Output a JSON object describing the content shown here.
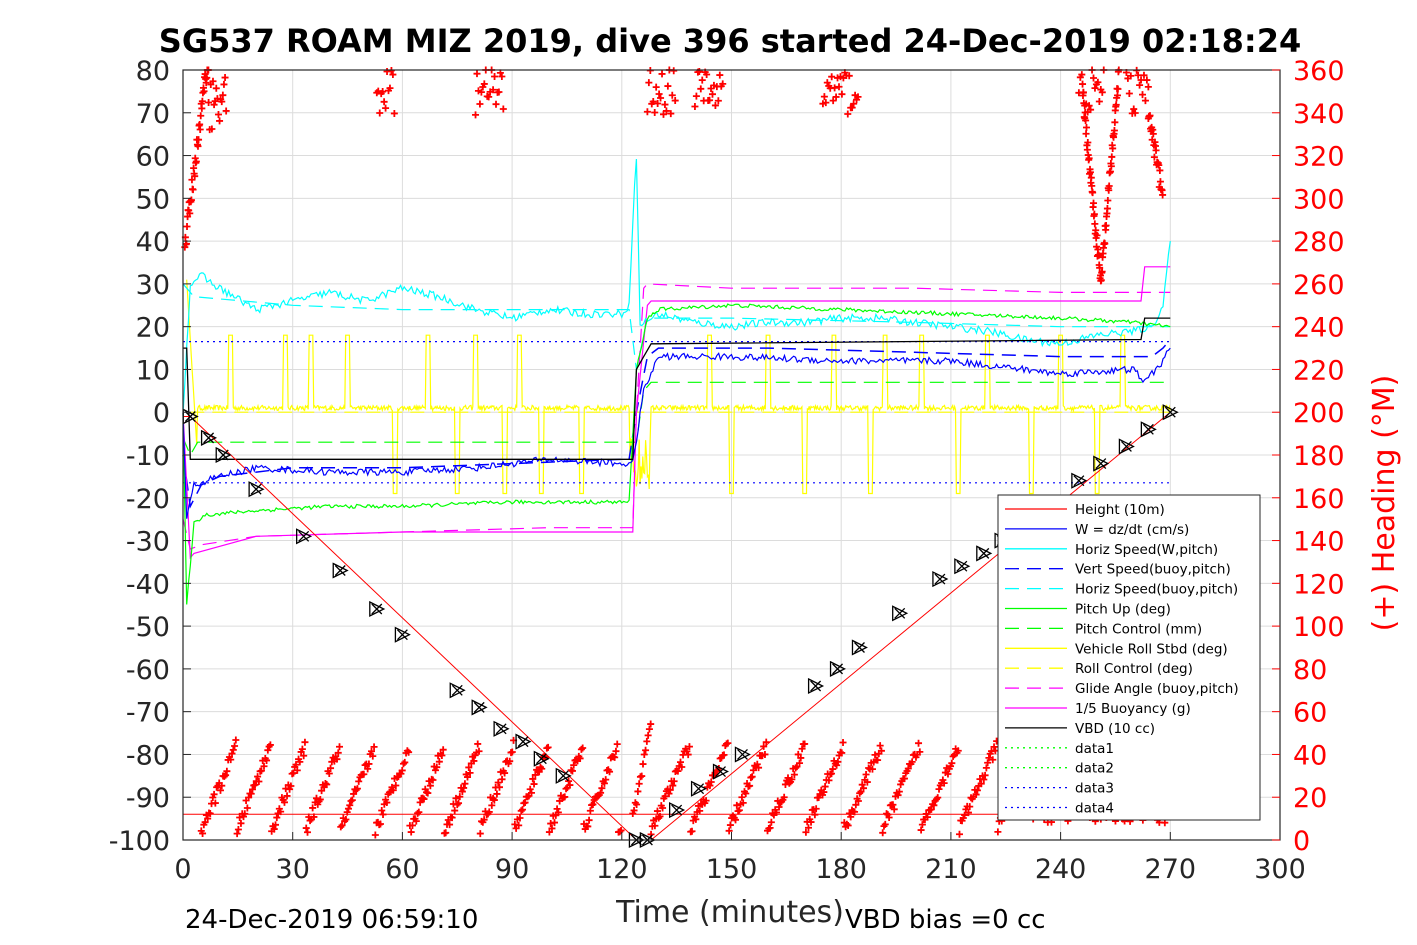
{
  "chart_data": {
    "type": "line",
    "title": "SG537 ROAM MIZ 2019, dive 396 started 24-Dec-2019 02:18:24",
    "xlabel": "Time (minutes)",
    "ylabel_right": "(+) Heading (°M)",
    "footer_left": "24-Dec-2019 06:59:10",
    "footer_right": "VBD bias =0 cc",
    "xlim": [
      0,
      300
    ],
    "ylim": [
      -100,
      80
    ],
    "y2lim": [
      0,
      360
    ],
    "x_ticks": [
      0,
      30,
      60,
      90,
      120,
      150,
      180,
      210,
      240,
      270,
      300
    ],
    "y_ticks": [
      -100,
      -90,
      -80,
      -70,
      -60,
      -50,
      -40,
      -30,
      -20,
      -10,
      0,
      10,
      20,
      30,
      40,
      50,
      60,
      70,
      80
    ],
    "y2_ticks": [
      0,
      20,
      40,
      60,
      80,
      100,
      120,
      140,
      160,
      180,
      200,
      220,
      240,
      260,
      280,
      300,
      320,
      340,
      360
    ],
    "grid": true,
    "legend_position": "lower-right",
    "colors": {
      "height": "#ff0000",
      "w": "#0000ff",
      "horiz": "#00ffff",
      "pitch": "#00ff00",
      "roll": "#ffff00",
      "glide": "#ff00ff",
      "vbd": "#000000",
      "heading": "#ff0000",
      "data3": "#0000ff"
    },
    "legend": [
      {
        "label": "Height (10m)",
        "color": "#ff0000",
        "dash": "solid"
      },
      {
        "label": "W = dz/dt (cm/s)",
        "color": "#0000ff",
        "dash": "solid"
      },
      {
        "label": "Horiz Speed(W,pitch)",
        "color": "#00ffff",
        "dash": "solid"
      },
      {
        "label": "Vert Speed(buoy,pitch)",
        "color": "#0000ff",
        "dash": "dashed"
      },
      {
        "label": "Horiz Speed(buoy,pitch)",
        "color": "#00ffff",
        "dash": "dashed"
      },
      {
        "label": "Pitch Up (deg)",
        "color": "#00ff00",
        "dash": "solid"
      },
      {
        "label": "Pitch Control (mm)",
        "color": "#00ff00",
        "dash": "dashed"
      },
      {
        "label": "Vehicle Roll Stbd (deg)",
        "color": "#ffff00",
        "dash": "solid"
      },
      {
        "label": "Roll Control (deg)",
        "color": "#ffff00",
        "dash": "dashed"
      },
      {
        "label": "Glide Angle (buoy,pitch)",
        "color": "#ff00ff",
        "dash": "dashed"
      },
      {
        "label": "1/5 Buoyancy (g)",
        "color": "#ff00ff",
        "dash": "solid"
      },
      {
        "label": "VBD (10 cc)",
        "color": "#000000",
        "dash": "solid"
      },
      {
        "label": "data1",
        "color": "#00ff00",
        "dash": "dotted"
      },
      {
        "label": "data2",
        "color": "#00ff00",
        "dash": "dotted"
      },
      {
        "label": "data3",
        "color": "#0000ff",
        "dash": "dotted"
      },
      {
        "label": "data4",
        "color": "#0000ff",
        "dash": "dotted"
      }
    ],
    "series": [
      {
        "key": "height",
        "x": [
          0,
          2,
          124,
          128,
          270
        ],
        "y": [
          -1,
          -1,
          -100,
          -100,
          0
        ]
      },
      {
        "key": "w",
        "x": [
          0,
          1,
          3,
          10,
          20,
          40,
          60,
          80,
          100,
          120,
          123,
          126,
          130,
          150,
          180,
          210,
          240,
          260,
          263,
          268,
          270
        ],
        "y": [
          0,
          -25,
          -17,
          -15,
          -13,
          -14,
          -14,
          -13,
          -11,
          -12,
          -12,
          5,
          13,
          13,
          12,
          12,
          9,
          10,
          7,
          12,
          15
        ]
      },
      {
        "key": "horiz",
        "x": [
          0,
          2,
          5,
          8,
          12,
          20,
          30,
          40,
          50,
          60,
          70,
          80,
          90,
          100,
          110,
          120,
          122,
          123,
          124,
          125,
          126,
          130,
          140,
          150,
          160,
          170,
          180,
          190,
          200,
          210,
          220,
          230,
          240,
          250,
          260,
          265,
          268,
          270
        ],
        "y": [
          0,
          30,
          32,
          30,
          28,
          24,
          26,
          28,
          26,
          29,
          27,
          24,
          22,
          24,
          23,
          23,
          25,
          45,
          60,
          20,
          21,
          23,
          21,
          20,
          21,
          21,
          22,
          22,
          21,
          20,
          19,
          17,
          16,
          18,
          19,
          20,
          25,
          40
        ]
      },
      {
        "key": "vert_buoy",
        "x": [
          0,
          2,
          5,
          10,
          30,
          60,
          90,
          120,
          122,
          124,
          127,
          130,
          160,
          200,
          240,
          265,
          268,
          270
        ],
        "y": [
          -10,
          -22,
          -17,
          -15,
          -13,
          -13,
          -12,
          -11,
          -11,
          0,
          13,
          15,
          15,
          14,
          13,
          13,
          15,
          17
        ]
      },
      {
        "key": "horiz_buoy",
        "x": [
          0,
          3,
          30,
          60,
          90,
          120,
          122,
          124,
          127,
          150,
          200,
          240,
          270
        ],
        "y": [
          30,
          27,
          25,
          24,
          24,
          24,
          24,
          10,
          22,
          22,
          21,
          20,
          20
        ]
      },
      {
        "key": "pitch_up",
        "x": [
          0,
          1,
          3,
          6,
          20,
          40,
          60,
          90,
          120,
          122,
          124,
          127,
          130,
          150,
          180,
          210,
          240,
          260,
          270
        ],
        "y": [
          0,
          -45,
          -26,
          -24,
          -23,
          -22,
          -22,
          -21,
          -21,
          -21,
          10,
          22,
          24,
          25,
          24,
          23,
          22,
          21,
          20
        ]
      },
      {
        "key": "pitch_ctrl",
        "x": [
          0,
          2,
          4,
          123,
          124,
          126,
          128,
          270
        ],
        "y": [
          -6,
          -10,
          -7,
          -7,
          -7,
          5,
          7,
          7
        ]
      },
      {
        "key": "roll_ctrl",
        "x": [
          2,
          270
        ],
        "y": [
          0,
          0
        ]
      },
      {
        "key": "glide",
        "x": [
          0,
          2,
          5,
          20,
          60,
          100,
          120,
          123,
          124,
          126,
          127,
          150,
          200,
          240,
          270
        ],
        "y": [
          -25,
          -32,
          -31,
          -29,
          -28,
          -27,
          -27,
          -27,
          0,
          29,
          30,
          29,
          29,
          28,
          28
        ]
      },
      {
        "key": "buoy",
        "x": [
          0,
          2,
          3,
          20,
          60,
          100,
          123,
          124,
          127,
          128,
          200,
          262,
          263,
          270
        ],
        "y": [
          0,
          -34,
          -33,
          -29,
          -28,
          -28,
          -28,
          0,
          25,
          26,
          26,
          26,
          34,
          34
        ]
      },
      {
        "key": "vbd",
        "x": [
          0,
          1,
          2,
          123,
          124,
          126,
          128,
          129,
          262,
          263,
          270
        ],
        "y": [
          15,
          15,
          -11,
          -11,
          10,
          13,
          16,
          16,
          17,
          22,
          22
        ]
      },
      {
        "key": "data3_top",
        "x": [
          0,
          270
        ],
        "y": [
          16.5,
          16.5
        ]
      },
      {
        "key": "data3_bottom",
        "x": [
          0,
          270
        ],
        "y": [
          -16.5,
          -16.5
        ]
      },
      {
        "key": "height_flat",
        "x": [
          0,
          270
        ],
        "y": [
          -94,
          -94
        ]
      }
    ],
    "markers": {
      "x": [
        2,
        7,
        11,
        20,
        33,
        43,
        53,
        60,
        75,
        81,
        87,
        93,
        98,
        104,
        124,
        127,
        135,
        141,
        147,
        153,
        173,
        179,
        185,
        196,
        207,
        213,
        219,
        224,
        245,
        251,
        258,
        264,
        270
      ],
      "y": [
        -1,
        -6,
        -10,
        -18,
        -29,
        -37,
        -46,
        -52,
        -65,
        -69,
        -74,
        -77,
        -81,
        -85,
        -100,
        -100,
        -93,
        -88,
        -84,
        -80,
        -64,
        -60,
        -55,
        -47,
        -39,
        -36,
        -33,
        -30,
        -16,
        -12,
        -8,
        -4,
        0
      ]
    }
  }
}
